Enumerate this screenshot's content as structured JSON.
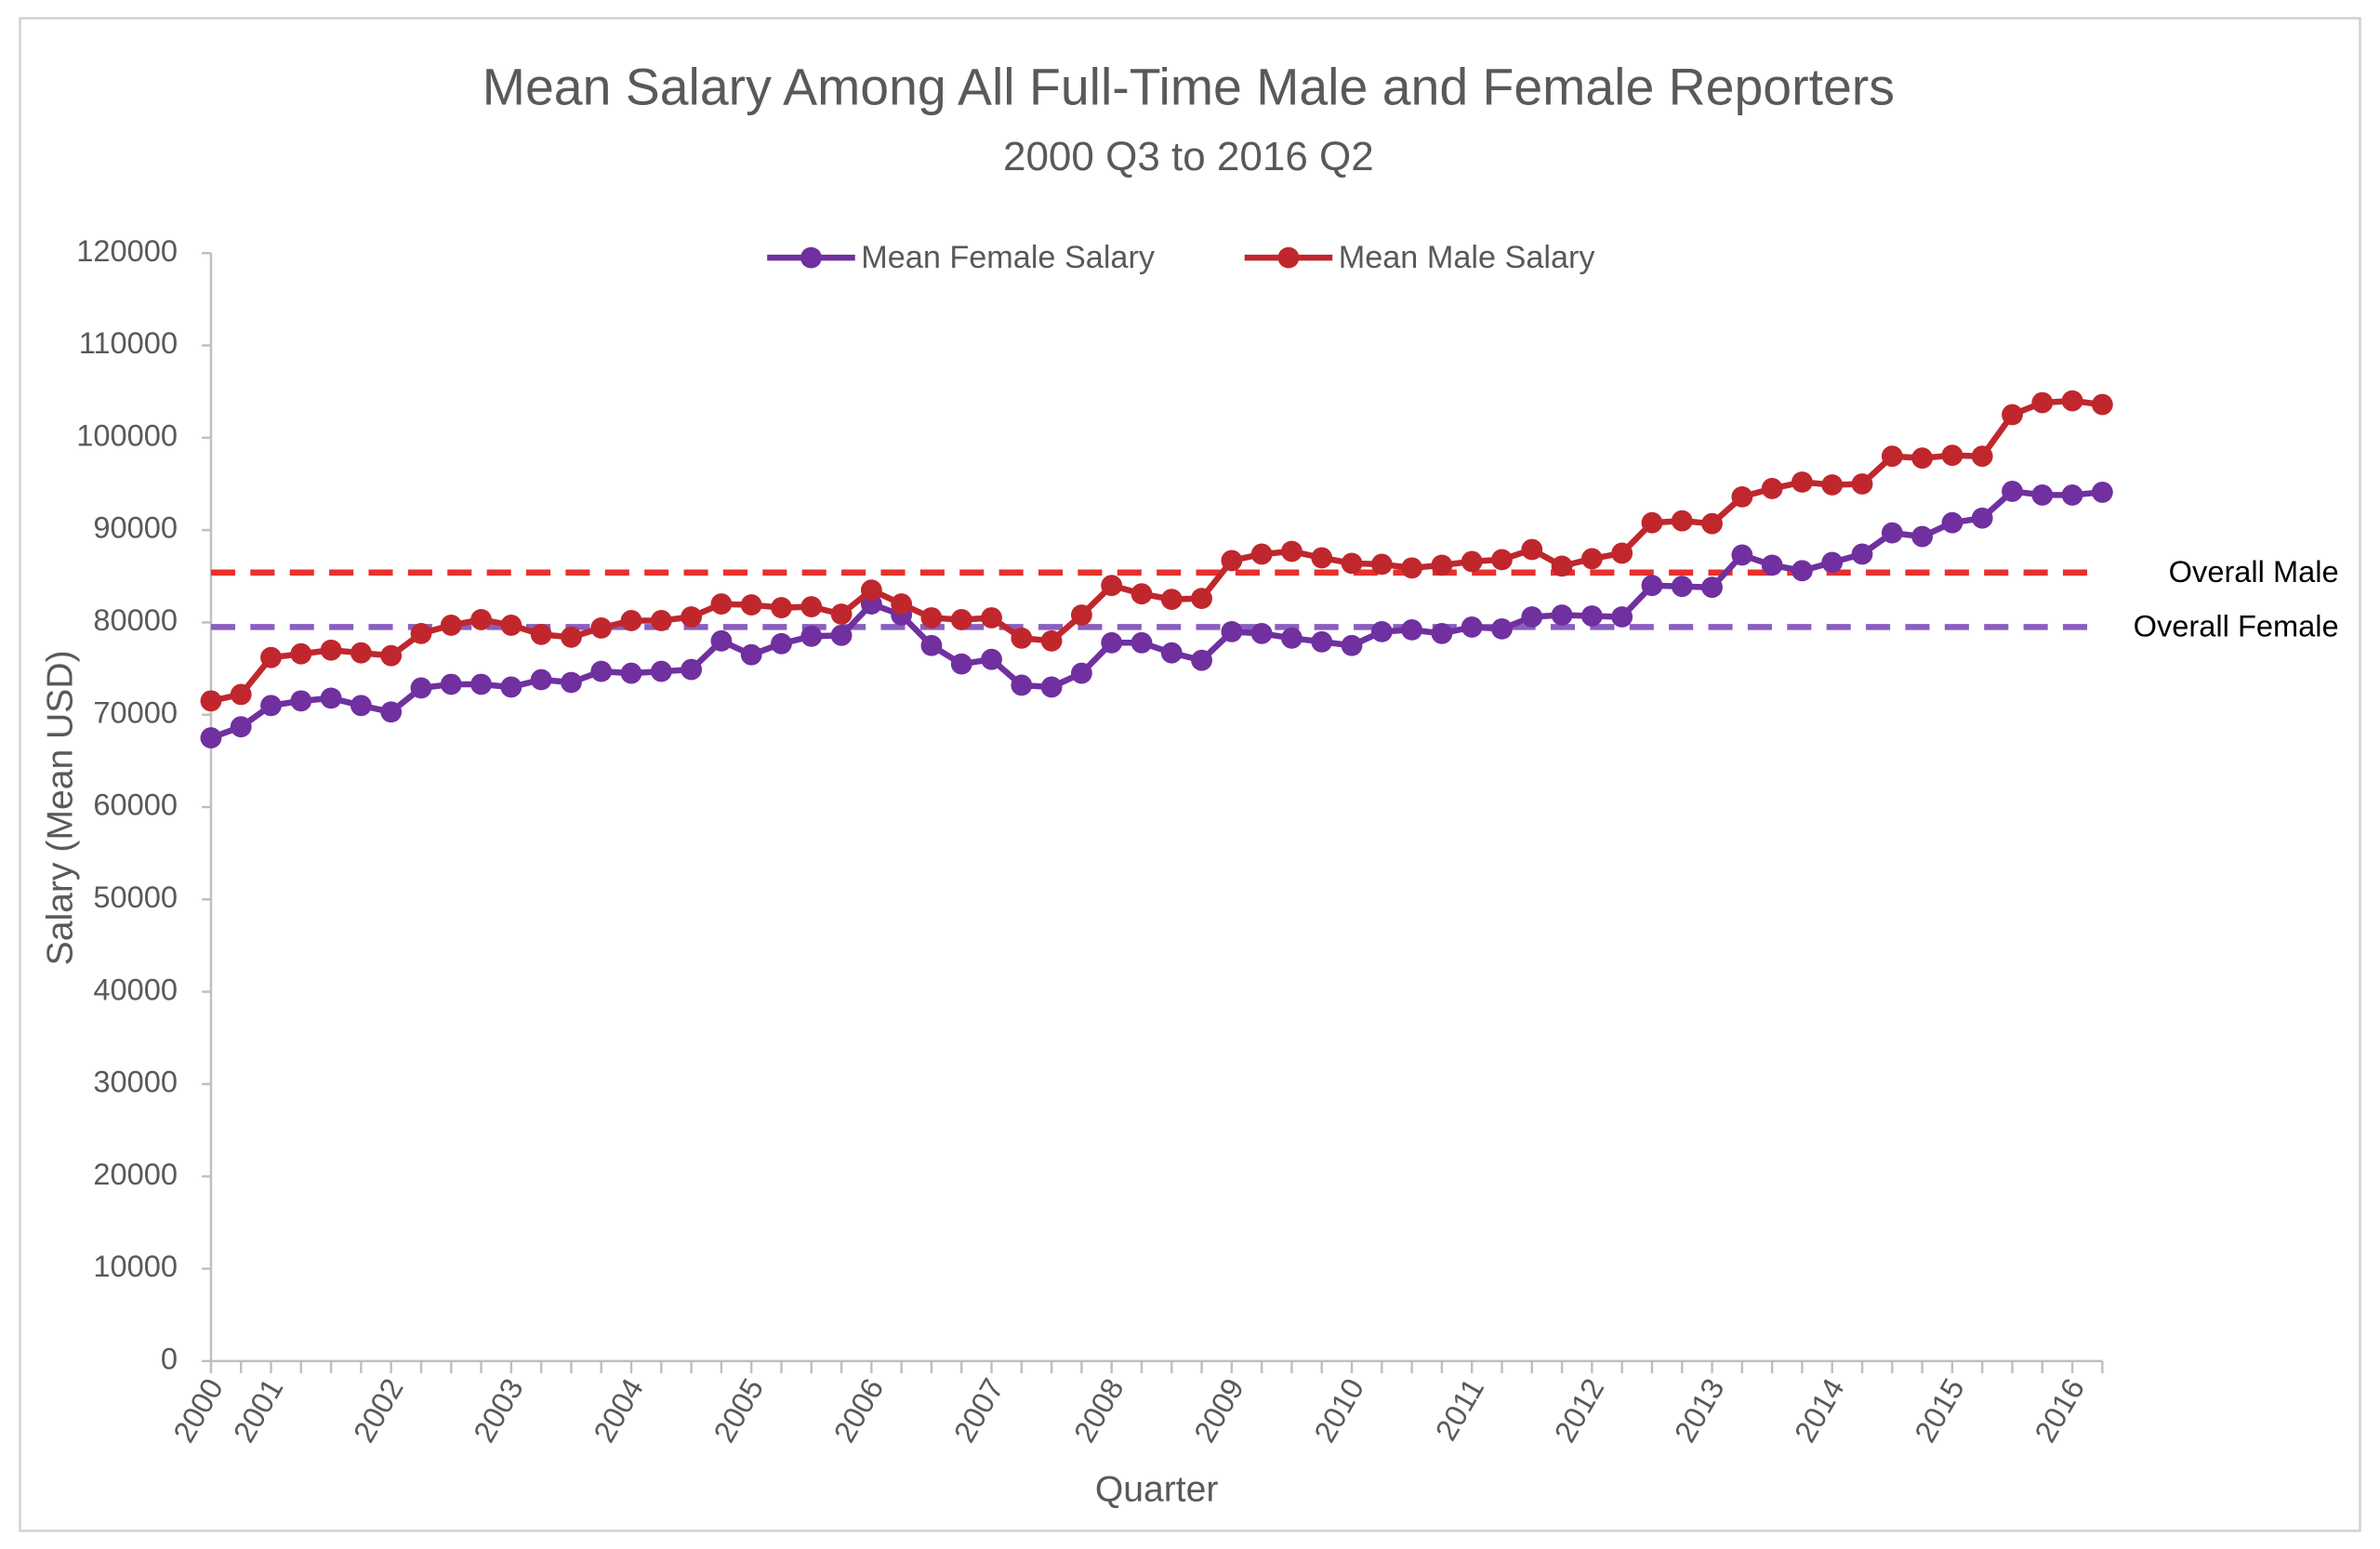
{
  "chart_data": {
    "type": "line",
    "title": "Mean Salary Among All Full-Time Male and Female Reporters",
    "subtitle": "2000 Q3 to 2016 Q2",
    "x_label": "Quarter",
    "y_label": "Salary  (Mean USD)",
    "categories": [
      "2000",
      null,
      "2001",
      null,
      null,
      null,
      "2002",
      null,
      null,
      null,
      "2003",
      null,
      null,
      null,
      "2004",
      null,
      null,
      null,
      "2005",
      null,
      null,
      null,
      "2006",
      null,
      null,
      null,
      "2007",
      null,
      null,
      null,
      "2008",
      null,
      null,
      null,
      "2009",
      null,
      null,
      null,
      "2010",
      null,
      null,
      null,
      "2011",
      null,
      null,
      null,
      "2012",
      null,
      null,
      null,
      "2013",
      null,
      null,
      null,
      "2014",
      null,
      null,
      null,
      "2015",
      null,
      null,
      null,
      "2016",
      null
    ],
    "series": [
      {
        "name": "Mean Female Salary",
        "color": "#7030a0",
        "values": [
          67500,
          68700,
          71000,
          71500,
          71800,
          71000,
          70300,
          72900,
          73300,
          73300,
          73000,
          73800,
          73500,
          74700,
          74500,
          74700,
          74900,
          78000,
          76500,
          77700,
          78500,
          78600,
          82000,
          80800,
          77500,
          75500,
          76000,
          73200,
          73000,
          74500,
          77800,
          77800,
          76700,
          75900,
          79000,
          78800,
          78300,
          77900,
          77500,
          79000,
          79200,
          78800,
          79500,
          79300,
          80600,
          80800,
          80700,
          80600,
          84000,
          83900,
          83800,
          87300,
          86200,
          85600,
          86500,
          87400,
          89700,
          89300,
          90800,
          91300,
          94200,
          93800,
          93800,
          94100
        ]
      },
      {
        "name": "Mean Male Salary",
        "color": "#c0272d",
        "values": [
          71500,
          72200,
          76200,
          76600,
          77000,
          76700,
          76400,
          78800,
          79700,
          80300,
          79700,
          78700,
          78400,
          79400,
          80200,
          80200,
          80600,
          82000,
          81900,
          81600,
          81700,
          80900,
          83500,
          82000,
          80500,
          80300,
          80500,
          78300,
          78000,
          80800,
          84000,
          83100,
          82500,
          82600,
          86700,
          87400,
          87700,
          87000,
          86400,
          86300,
          85900,
          86200,
          86600,
          86800,
          87900,
          86100,
          86900,
          87500,
          90800,
          91000,
          90700,
          93600,
          94500,
          95200,
          94900,
          95000,
          98000,
          97800,
          98100,
          98000,
          102500,
          103800,
          104000,
          103600
        ]
      }
    ],
    "reference_lines": [
      {
        "name": "Overall Male",
        "value": 85400,
        "color": "#e8302c"
      },
      {
        "name": "Overall Female",
        "value": 79500,
        "color": "#8a5fbf"
      }
    ],
    "ylim": [
      0,
      120000
    ],
    "yticks": [
      0,
      10000,
      20000,
      30000,
      40000,
      50000,
      60000,
      70000,
      80000,
      90000,
      100000,
      110000,
      120000
    ],
    "grid": false,
    "legend": "top"
  }
}
